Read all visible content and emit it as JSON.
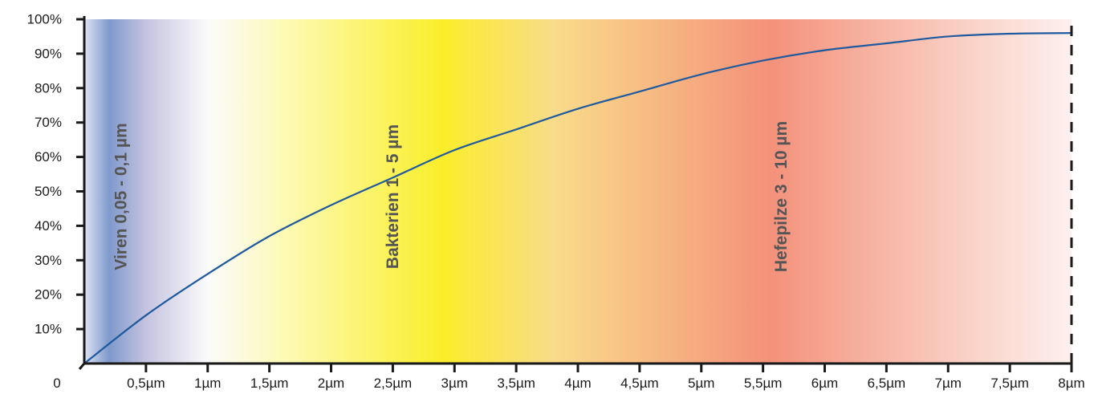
{
  "chart_data": {
    "type": "line",
    "title": "",
    "xlabel": "",
    "ylabel": "",
    "origin_label": "0",
    "xlim": [
      0,
      8
    ],
    "ylim": [
      0,
      100
    ],
    "x_ticks": [
      {
        "value": 0.5,
        "label": "0,5µm"
      },
      {
        "value": 1,
        "label": "1µm"
      },
      {
        "value": 1.5,
        "label": "1,5µm"
      },
      {
        "value": 2,
        "label": "2µm"
      },
      {
        "value": 2.5,
        "label": "2,5µm"
      },
      {
        "value": 3,
        "label": "3µm"
      },
      {
        "value": 3.5,
        "label": "3,5µm"
      },
      {
        "value": 4,
        "label": "4µm"
      },
      {
        "value": 4.5,
        "label": "4,5µm"
      },
      {
        "value": 5,
        "label": "5µm"
      },
      {
        "value": 5.5,
        "label": "5,5µm"
      },
      {
        "value": 6,
        "label": "6µm"
      },
      {
        "value": 6.5,
        "label": "6,5µm"
      },
      {
        "value": 7,
        "label": "7µm"
      },
      {
        "value": 7.5,
        "label": "7,5µm"
      },
      {
        "value": 8,
        "label": "8µm"
      }
    ],
    "y_ticks": [
      {
        "value": 10,
        "label": "10%"
      },
      {
        "value": 20,
        "label": "20%"
      },
      {
        "value": 30,
        "label": "30%"
      },
      {
        "value": 40,
        "label": "40%"
      },
      {
        "value": 50,
        "label": "50%"
      },
      {
        "value": 60,
        "label": "60%"
      },
      {
        "value": 70,
        "label": "70%"
      },
      {
        "value": 80,
        "label": "80%"
      },
      {
        "value": 90,
        "label": "90%"
      },
      {
        "value": 100,
        "label": "100%"
      }
    ],
    "series": [
      {
        "color": "#1f5a9e",
        "x": [
          0,
          0.5,
          1,
          1.5,
          2,
          2.5,
          3,
          3.5,
          4,
          4.5,
          5,
          5.5,
          6,
          6.5,
          7,
          7.5,
          8
        ],
        "y": [
          0,
          14,
          26,
          37,
          46,
          54,
          62,
          68,
          74,
          79,
          84,
          88,
          91,
          93,
          95,
          95.8,
          96
        ]
      }
    ],
    "bands": [
      {
        "label": "Viren 0,05 - 0,1 µm",
        "x_label": 0.3
      },
      {
        "label": "Bakterien 1 - 5 µm",
        "x_label": 2.5
      },
      {
        "label": "Hefepilze 3 - 10 µm",
        "x_label": 5.65
      }
    ],
    "background_gradient": [
      {
        "x": 0,
        "color": "#dde3f3"
      },
      {
        "x": 0.2,
        "color": "#7f99cc"
      },
      {
        "x": 0.5,
        "color": "#c5c3e0"
      },
      {
        "x": 1,
        "color": "#fbfbfb"
      },
      {
        "x": 1.6,
        "color": "#fdfab8"
      },
      {
        "x": 2.9,
        "color": "#faee2a"
      },
      {
        "x": 3.8,
        "color": "#f9dc8a"
      },
      {
        "x": 5.55,
        "color": "#f4917a"
      },
      {
        "x": 7.1,
        "color": "#f9cfc3"
      },
      {
        "x": 8,
        "color": "#fdf0ee"
      }
    ],
    "dashed_line_x": 8,
    "axis_color": "#1a1a1a",
    "grid": false
  }
}
